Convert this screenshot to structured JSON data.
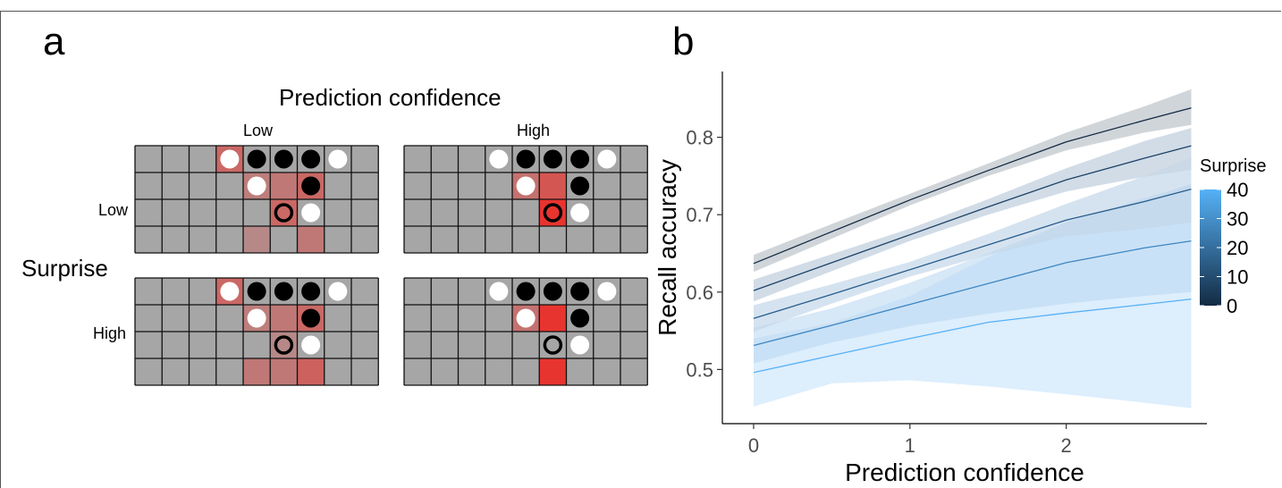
{
  "panel_a": {
    "letter": "a",
    "col_title": "Prediction confidence",
    "col_labels": [
      "Low",
      "High"
    ],
    "row_title": "Surprise",
    "row_labels": [
      "Low",
      "High"
    ],
    "grids": [
      {
        "id": "low-confidence-low-surprise",
        "shades": [
          [
            0,
            3,
            0.55
          ],
          [
            1,
            4,
            0.35
          ],
          [
            1,
            5,
            0.4
          ],
          [
            1,
            6,
            0.55
          ],
          [
            2,
            5,
            0.55
          ],
          [
            3,
            4,
            0.25
          ],
          [
            3,
            6,
            0.4
          ]
        ],
        "black": [
          [
            0,
            4
          ],
          [
            0,
            5
          ],
          [
            0,
            6
          ],
          [
            1,
            6
          ]
        ],
        "white": [
          [
            0,
            3
          ],
          [
            0,
            7
          ],
          [
            1,
            4
          ],
          [
            2,
            6
          ]
        ],
        "target": [
          2,
          5
        ]
      },
      {
        "id": "high-confidence-low-surprise",
        "shades": [
          [
            1,
            4,
            0.45
          ],
          [
            1,
            5,
            0.7
          ],
          [
            2,
            5,
            1.0
          ]
        ],
        "black": [
          [
            0,
            4
          ],
          [
            0,
            5
          ],
          [
            0,
            6
          ],
          [
            1,
            6
          ]
        ],
        "white": [
          [
            0,
            3
          ],
          [
            0,
            7
          ],
          [
            1,
            4
          ],
          [
            2,
            6
          ]
        ],
        "target": [
          2,
          5
        ]
      },
      {
        "id": "low-confidence-high-surprise",
        "shades": [
          [
            0,
            3,
            0.55
          ],
          [
            1,
            4,
            0.35
          ],
          [
            1,
            5,
            0.4
          ],
          [
            1,
            6,
            0.55
          ],
          [
            2,
            5,
            0.25
          ],
          [
            3,
            4,
            0.4
          ],
          [
            3,
            5,
            0.4
          ],
          [
            3,
            6,
            0.6
          ]
        ],
        "black": [
          [
            0,
            4
          ],
          [
            0,
            5
          ],
          [
            0,
            6
          ],
          [
            1,
            6
          ]
        ],
        "white": [
          [
            0,
            3
          ],
          [
            0,
            7
          ],
          [
            1,
            4
          ],
          [
            2,
            6
          ]
        ],
        "target": [
          2,
          5
        ]
      },
      {
        "id": "high-confidence-high-surprise",
        "shades": [
          [
            1,
            4,
            0.45
          ],
          [
            1,
            5,
            1.0
          ],
          [
            3,
            5,
            1.0
          ]
        ],
        "black": [
          [
            0,
            4
          ],
          [
            0,
            5
          ],
          [
            0,
            6
          ],
          [
            1,
            6
          ]
        ],
        "white": [
          [
            0,
            3
          ],
          [
            0,
            7
          ],
          [
            1,
            4
          ],
          [
            2,
            6
          ]
        ],
        "target": [
          2,
          5
        ]
      }
    ]
  },
  "chart_data": {
    "type": "line",
    "panel_letter": "b",
    "xlabel": "Prediction confidence",
    "ylabel": "Recall accuracy",
    "xlim": [
      -0.2,
      2.9
    ],
    "ylim": [
      0.43,
      0.885
    ],
    "x_ticks": [
      0,
      1,
      2
    ],
    "y_ticks": [
      0.5,
      0.6,
      0.7,
      0.8
    ],
    "x_tick_labels": [
      "0",
      "1",
      "2"
    ],
    "y_tick_labels": [
      "0.5",
      "0.6",
      "0.7",
      "0.8"
    ],
    "legend": {
      "title": "Surprise",
      "ticks": [
        40,
        30,
        20,
        10,
        0
      ],
      "range": [
        0,
        40
      ],
      "color_low": "#132b43",
      "color_high": "#56b1f7",
      "placement": "right"
    },
    "series": [
      {
        "surprise": 0,
        "color": "#132b43",
        "band": "#d0d5da",
        "band_opacity": 1.0,
        "x": [
          0,
          0.5,
          1,
          1.5,
          2,
          2.5,
          2.8
        ],
        "y": [
          0.637,
          0.678,
          0.719,
          0.757,
          0.794,
          0.822,
          0.838
        ],
        "lower": [
          0.626,
          0.669,
          0.712,
          0.75,
          0.783,
          0.806,
          0.816
        ],
        "upper": [
          0.648,
          0.688,
          0.727,
          0.766,
          0.806,
          0.84,
          0.862
        ]
      },
      {
        "surprise": 10,
        "color": "#1d4266",
        "band": "#c9d6e3",
        "band_opacity": 0.85,
        "x": [
          0,
          0.5,
          1,
          1.5,
          2,
          2.5,
          2.8
        ],
        "y": [
          0.602,
          0.638,
          0.674,
          0.71,
          0.745,
          0.773,
          0.789
        ],
        "lower": [
          0.588,
          0.627,
          0.666,
          0.7,
          0.73,
          0.749,
          0.758
        ],
        "upper": [
          0.616,
          0.649,
          0.682,
          0.72,
          0.76,
          0.795,
          0.812
        ]
      },
      {
        "surprise": 20,
        "color": "#285d8c",
        "band": "#c3d7ea",
        "band_opacity": 0.7,
        "x": [
          0,
          0.5,
          1,
          1.5,
          2,
          2.5,
          2.8
        ],
        "y": [
          0.566,
          0.597,
          0.629,
          0.661,
          0.693,
          0.717,
          0.733
        ],
        "lower": [
          0.549,
          0.585,
          0.62,
          0.648,
          0.672,
          0.682,
          0.69
        ],
        "upper": [
          0.583,
          0.61,
          0.639,
          0.675,
          0.714,
          0.75,
          0.774
        ]
      },
      {
        "surprise": 30,
        "color": "#3d86c2",
        "band": "#bcd9f2",
        "band_opacity": 0.6,
        "x": [
          0,
          0.5,
          1,
          1.5,
          2,
          2.5,
          2.8
        ],
        "y": [
          0.531,
          0.557,
          0.584,
          0.611,
          0.638,
          0.657,
          0.666
        ],
        "lower": [
          0.508,
          0.535,
          0.556,
          0.572,
          0.585,
          0.595,
          0.6
        ],
        "upper": [
          0.554,
          0.579,
          0.612,
          0.65,
          0.69,
          0.72,
          0.74
        ]
      },
      {
        "surprise": 40,
        "color": "#56b1f7",
        "band": "#c6e3fb",
        "band_opacity": 0.6,
        "x": [
          0,
          0.5,
          1,
          1.5,
          2,
          2.5,
          2.8
        ],
        "y": [
          0.496,
          0.518,
          0.54,
          0.561,
          0.573,
          0.584,
          0.591
        ],
        "lower": [
          0.452,
          0.482,
          0.486,
          0.478,
          0.468,
          0.457,
          0.45
        ],
        "upper": [
          0.54,
          0.56,
          0.595,
          0.645,
          0.69,
          0.722,
          0.738
        ]
      }
    ]
  }
}
